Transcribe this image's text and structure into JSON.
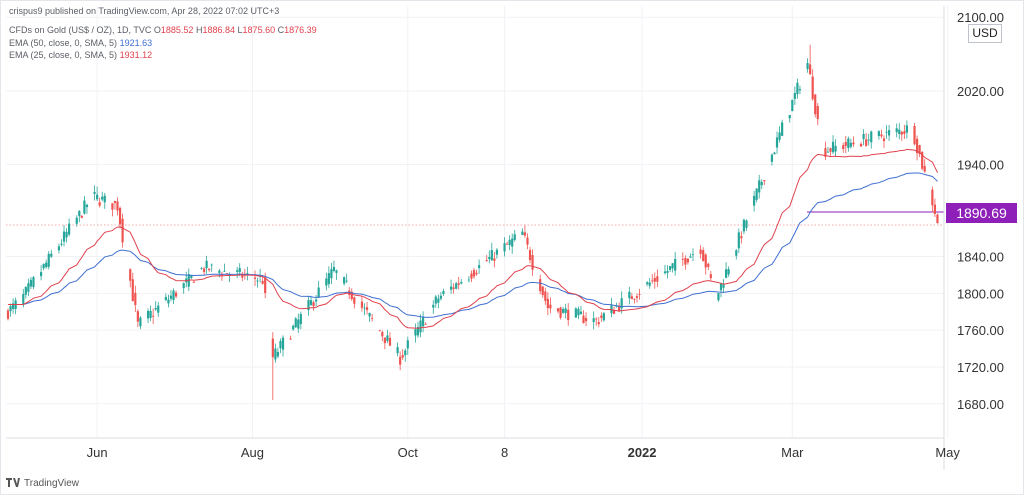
{
  "header": {
    "published": "crispus9 published on TradingView.com, Apr 28, 2022 07:02 UTC+3",
    "symbol": "CFDs on Gold (US$ / OZ), 1D, TVC",
    "o_label": "O",
    "o_value": "1885.52",
    "h_label": "H",
    "h_value": "1886.84",
    "l_label": "L",
    "l_value": "1875.60",
    "c_label": "C",
    "c_value": "1876.39",
    "ema50_label": "EMA (50, close, 0, SMA, 5)",
    "ema50_value": "1921.63",
    "ema25_label": "EMA (25, close, 0, SMA, 5)",
    "ema25_value": "1931.12"
  },
  "currency": "USD",
  "last_price_tag": "1890.69",
  "footer": {
    "brand": "TradingView"
  },
  "colors": {
    "up": "#26a69a",
    "down": "#ef5350",
    "ema50": "#3f6fd1",
    "ema25": "#e0414d",
    "tag": "#8e1fb8"
  },
  "chart_data": {
    "type": "candlestick",
    "x_tick_labels": [
      "Jun",
      "Aug",
      "Oct",
      "8",
      "2022",
      "Mar",
      "May"
    ],
    "y_tick_labels": [
      "2100.00",
      "2020.00",
      "1940.00",
      "1840.00",
      "1800.00",
      "1760.00",
      "1720.00",
      "1680.00"
    ],
    "ylim": [
      1645,
      2110
    ],
    "y_scale": "linear",
    "series": [
      {
        "name": "EMA (50, close, 0, SMA, 5)",
        "start": "2021-04-27",
        "end": "2022-04-28",
        "end_value": 1921.63
      },
      {
        "name": "EMA (25, close, 0, SMA, 5)",
        "start": "2021-04-27",
        "end": "2022-04-28",
        "end_value": 1931.12
      }
    ],
    "ohlc_segments": [
      {
        "from": "2021-04-27",
        "to": "2021-05-03",
        "open": 1778,
        "close": 1792
      },
      {
        "from": "2021-05-03",
        "to": "2021-05-31",
        "open": 1792,
        "close": 1905
      },
      {
        "from": "2021-05-31",
        "to": "2021-06-10",
        "open": 1905,
        "close": 1895
      },
      {
        "from": "2021-06-10",
        "to": "2021-06-18",
        "open": 1895,
        "close": 1765
      },
      {
        "from": "2021-06-18",
        "to": "2021-07-14",
        "open": 1765,
        "close": 1828
      },
      {
        "from": "2021-07-14",
        "to": "2021-08-06",
        "open": 1828,
        "close": 1815
      },
      {
        "from": "2021-08-06",
        "to": "2021-08-10",
        "open": 1815,
        "close": 1730
      },
      {
        "from": "2021-08-10",
        "to": "2021-09-03",
        "open": 1730,
        "close": 1825
      },
      {
        "from": "2021-09-03",
        "to": "2021-09-29",
        "open": 1825,
        "close": 1730
      },
      {
        "from": "2021-09-29",
        "to": "2021-10-14",
        "open": 1730,
        "close": 1795
      },
      {
        "from": "2021-10-14",
        "to": "2021-11-16",
        "open": 1795,
        "close": 1865
      },
      {
        "from": "2021-11-16",
        "to": "2021-11-26",
        "open": 1865,
        "close": 1785
      },
      {
        "from": "2021-11-26",
        "to": "2021-12-15",
        "open": 1785,
        "close": 1770
      },
      {
        "from": "2021-12-15",
        "to": "2022-01-25",
        "open": 1770,
        "close": 1850
      },
      {
        "from": "2022-01-25",
        "to": "2022-01-31",
        "open": 1850,
        "close": 1795
      },
      {
        "from": "2022-01-31",
        "to": "2022-03-08",
        "open": 1795,
        "close": 2050
      },
      {
        "from": "2022-03-08",
        "to": "2022-03-14",
        "open": 2050,
        "close": 1955
      },
      {
        "from": "2022-03-14",
        "to": "2022-04-18",
        "open": 1955,
        "close": 1980
      },
      {
        "from": "2022-04-18",
        "to": "2022-04-28",
        "open": 1980,
        "close": 1880
      }
    ],
    "extremes": [
      {
        "date": "2021-06-01",
        "high": 1916
      },
      {
        "date": "2021-08-09",
        "low": 1684
      },
      {
        "date": "2022-03-08",
        "high": 2070
      }
    ]
  }
}
